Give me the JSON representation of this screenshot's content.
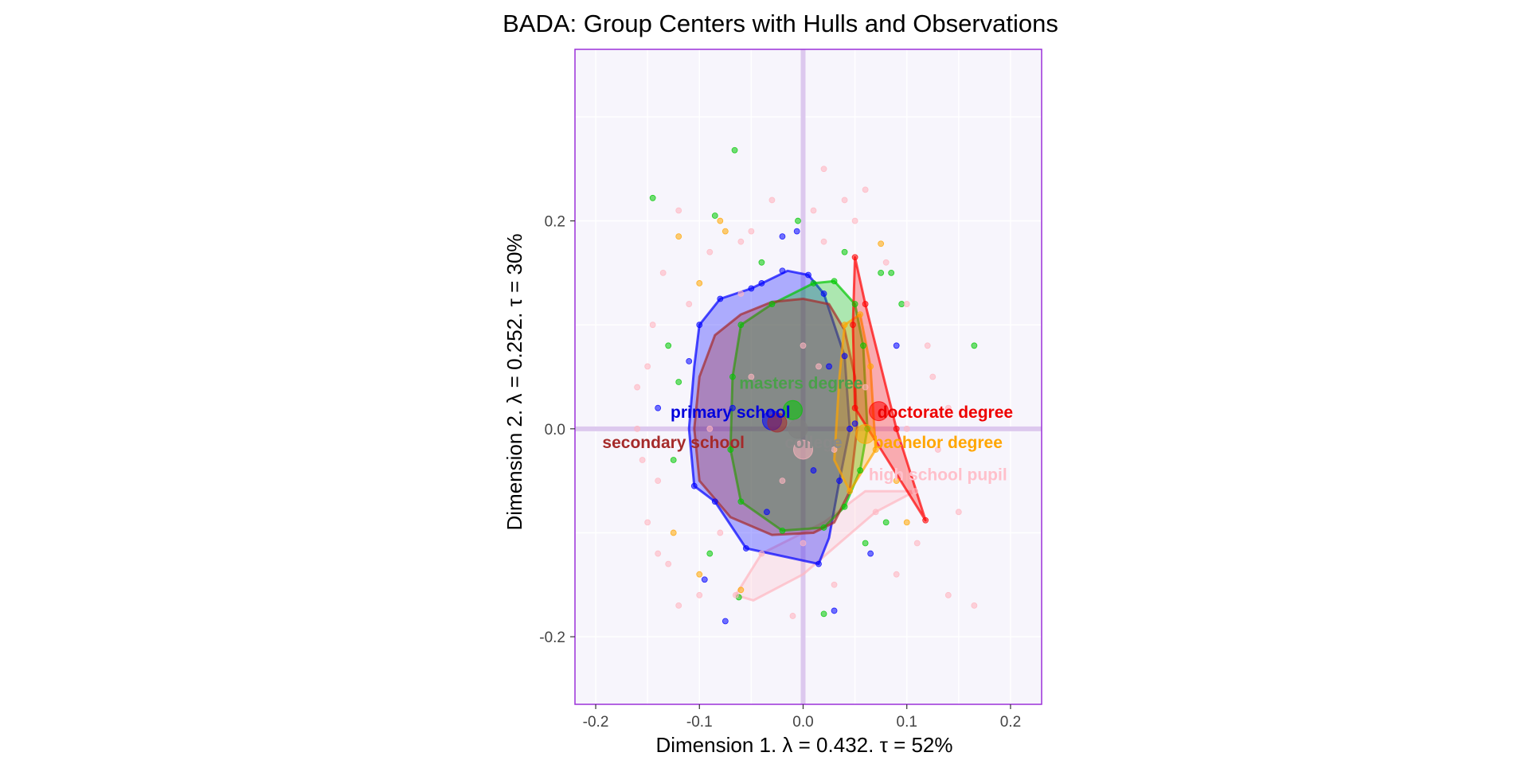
{
  "chart_data": {
    "type": "scatter",
    "title": "BADA: Group Centers with Hulls and Observations",
    "xlabel": "Dimension 1.   λ = 0.432.  τ = 52%",
    "ylabel": "Dimension 2.   λ = 0.252.  τ = 30%",
    "xlim": [
      -0.22,
      0.23
    ],
    "ylim": [
      -0.265,
      0.365
    ],
    "x_ticks": [
      -0.2,
      -0.1,
      0.0,
      0.1,
      0.2
    ],
    "y_ticks": [
      -0.2,
      0.0,
      0.2
    ],
    "x_tick_labels": [
      "-0.2",
      "-0.1",
      "0.0",
      "0.1",
      "0.2"
    ],
    "y_tick_labels": [
      "-0.2",
      "0.0",
      "0.2"
    ],
    "grid": true,
    "panel_background": "#f7f5fc",
    "panel_border_color": "#9b30d9",
    "origin_line_color": "#dcc8ee",
    "groups": [
      {
        "name": "primary school",
        "color": "#0000ff",
        "center": [
          -0.03,
          0.008
        ],
        "label_pos": [
          -0.07,
          0.016
        ],
        "hull": [
          [
            -0.08,
            0.125
          ],
          [
            -0.05,
            0.135
          ],
          [
            -0.015,
            0.152
          ],
          [
            0.005,
            0.148
          ],
          [
            0.02,
            0.13
          ],
          [
            0.04,
            0.07
          ],
          [
            0.045,
            0.0
          ],
          [
            0.035,
            -0.05
          ],
          [
            0.025,
            -0.105
          ],
          [
            0.015,
            -0.13
          ],
          [
            -0.055,
            -0.115
          ],
          [
            -0.085,
            -0.07
          ],
          [
            -0.105,
            -0.055
          ],
          [
            -0.11,
            0.0
          ],
          [
            -0.105,
            0.06
          ],
          [
            -0.1,
            0.1
          ]
        ]
      },
      {
        "name": "masters degree",
        "color": "#00c800",
        "center": [
          -0.01,
          0.018
        ],
        "label_pos": [
          -0.002,
          0.044
        ],
        "hull": [
          [
            -0.06,
            0.1
          ],
          [
            -0.03,
            0.12
          ],
          [
            0.01,
            0.14
          ],
          [
            0.03,
            0.142
          ],
          [
            0.05,
            0.12
          ],
          [
            0.058,
            0.08
          ],
          [
            0.062,
            0.0
          ],
          [
            0.055,
            -0.04
          ],
          [
            0.04,
            -0.075
          ],
          [
            0.02,
            -0.095
          ],
          [
            -0.02,
            -0.098
          ],
          [
            -0.06,
            -0.07
          ],
          [
            -0.07,
            -0.02
          ],
          [
            -0.068,
            0.05
          ]
        ]
      },
      {
        "name": "doctorate degree",
        "color": "#ff0000",
        "center": [
          0.073,
          0.017
        ],
        "label_pos": [
          0.137,
          0.016
        ],
        "hull": [
          [
            0.05,
            0.165
          ],
          [
            0.06,
            0.12
          ],
          [
            0.09,
            0.0
          ],
          [
            0.118,
            -0.088
          ],
          [
            0.05,
            0.02
          ],
          [
            0.048,
            0.1
          ]
        ]
      },
      {
        "name": "secondary school",
        "color": "#a52a2a",
        "center": [
          -0.025,
          0.006
        ],
        "label_pos": [
          -0.125,
          -0.013
        ],
        "hull": [
          [
            -0.06,
            0.11
          ],
          [
            -0.03,
            0.122
          ],
          [
            0.0,
            0.125
          ],
          [
            0.025,
            0.12
          ],
          [
            0.04,
            0.095
          ],
          [
            0.05,
            0.05
          ],
          [
            0.052,
            0.0
          ],
          [
            0.045,
            -0.06
          ],
          [
            0.03,
            -0.09
          ],
          [
            0.01,
            -0.1
          ],
          [
            -0.03,
            -0.102
          ],
          [
            -0.07,
            -0.085
          ],
          [
            -0.1,
            -0.05
          ],
          [
            -0.105,
            0.0
          ],
          [
            -0.1,
            0.05
          ],
          [
            -0.085,
            0.09
          ]
        ]
      },
      {
        "name": "college",
        "color": "#808080",
        "center": [
          -0.005,
          0.0
        ],
        "label_pos": [
          0.01,
          -0.013
        ],
        "hull": []
      },
      {
        "name": "bachelor degree",
        "color": "#ffa500",
        "center": [
          0.06,
          -0.005
        ],
        "label_pos": [
          0.13,
          -0.013
        ],
        "hull": [
          [
            0.04,
            0.1
          ],
          [
            0.055,
            0.11
          ],
          [
            0.065,
            0.06
          ],
          [
            0.07,
            -0.02
          ],
          [
            0.045,
            -0.06
          ],
          [
            0.03,
            -0.03
          ],
          [
            0.035,
            0.05
          ]
        ]
      },
      {
        "name": "high school pupil",
        "color": "#ffb6c1",
        "center": [
          0.0,
          -0.02
        ],
        "label_pos": [
          0.13,
          -0.044
        ],
        "hull": [
          [
            -0.04,
            -0.12
          ],
          [
            -0.065,
            -0.16
          ],
          [
            -0.048,
            -0.165
          ],
          [
            0.0,
            -0.14
          ],
          [
            0.07,
            -0.08
          ],
          [
            0.108,
            -0.06
          ],
          [
            0.06,
            -0.06
          ],
          [
            0.02,
            -0.09
          ]
        ]
      }
    ],
    "points": [
      {
        "g": 0,
        "x": -0.006,
        "y": 0.19
      },
      {
        "g": 0,
        "x": -0.02,
        "y": 0.185
      },
      {
        "g": 0,
        "x": 0.05,
        "y": 0.005
      },
      {
        "g": 0,
        "x": 0.03,
        "y": -0.175
      },
      {
        "g": 0,
        "x": -0.075,
        "y": -0.185
      },
      {
        "g": 0,
        "x": -0.095,
        "y": -0.145
      },
      {
        "g": 0,
        "x": -0.04,
        "y": 0.14
      },
      {
        "g": 0,
        "x": 0.065,
        "y": -0.12
      },
      {
        "g": 0,
        "x": -0.11,
        "y": 0.065
      },
      {
        "g": 0,
        "x": -0.02,
        "y": 0.152
      },
      {
        "g": 0,
        "x": 0.005,
        "y": 0.148
      },
      {
        "g": 0,
        "x": -0.08,
        "y": 0.125
      },
      {
        "g": 0,
        "x": 0.035,
        "y": -0.05
      },
      {
        "g": 0,
        "x": -0.055,
        "y": -0.115
      },
      {
        "g": 0,
        "x": 0.015,
        "y": -0.13
      },
      {
        "g": 0,
        "x": -0.105,
        "y": -0.055
      },
      {
        "g": 0,
        "x": -0.05,
        "y": 0.135
      },
      {
        "g": 0,
        "x": 0.02,
        "y": 0.13
      },
      {
        "g": 0,
        "x": 0.04,
        "y": 0.07
      },
      {
        "g": 0,
        "x": -0.085,
        "y": -0.07
      },
      {
        "g": 0,
        "x": 0.045,
        "y": 0.0
      },
      {
        "g": 0,
        "x": -0.1,
        "y": 0.1
      },
      {
        "g": 0,
        "x": -0.068,
        "y": 0.02
      },
      {
        "g": 0,
        "x": 0.01,
        "y": -0.04
      },
      {
        "g": 0,
        "x": -0.035,
        "y": -0.08
      },
      {
        "g": 0,
        "x": 0.025,
        "y": 0.06
      },
      {
        "g": 0,
        "x": -0.14,
        "y": 0.02
      },
      {
        "g": 0,
        "x": 0.09,
        "y": 0.08
      },
      {
        "g": 1,
        "x": -0.066,
        "y": 0.268
      },
      {
        "g": 1,
        "x": -0.145,
        "y": 0.222
      },
      {
        "g": 1,
        "x": 0.165,
        "y": 0.08
      },
      {
        "g": 1,
        "x": -0.085,
        "y": 0.205
      },
      {
        "g": 1,
        "x": 0.075,
        "y": 0.15
      },
      {
        "g": 1,
        "x": 0.085,
        "y": 0.15
      },
      {
        "g": 1,
        "x": 0.02,
        "y": -0.178
      },
      {
        "g": 1,
        "x": -0.062,
        "y": -0.162
      },
      {
        "g": 1,
        "x": 0.03,
        "y": 0.142
      },
      {
        "g": 1,
        "x": 0.058,
        "y": 0.08
      },
      {
        "g": 1,
        "x": 0.062,
        "y": 0.0
      },
      {
        "g": 1,
        "x": 0.055,
        "y": -0.04
      },
      {
        "g": 1,
        "x": 0.02,
        "y": -0.095
      },
      {
        "g": 1,
        "x": -0.02,
        "y": -0.098
      },
      {
        "g": 1,
        "x": -0.06,
        "y": -0.07
      },
      {
        "g": 1,
        "x": -0.07,
        "y": -0.02
      },
      {
        "g": 1,
        "x": -0.068,
        "y": 0.05
      },
      {
        "g": 1,
        "x": -0.06,
        "y": 0.1
      },
      {
        "g": 1,
        "x": -0.03,
        "y": 0.12
      },
      {
        "g": 1,
        "x": 0.01,
        "y": 0.14
      },
      {
        "g": 1,
        "x": 0.05,
        "y": 0.12
      },
      {
        "g": 1,
        "x": 0.04,
        "y": -0.075
      },
      {
        "g": 1,
        "x": -0.12,
        "y": 0.045
      },
      {
        "g": 1,
        "x": -0.125,
        "y": -0.03
      },
      {
        "g": 1,
        "x": 0.08,
        "y": -0.09
      },
      {
        "g": 1,
        "x": -0.09,
        "y": -0.12
      },
      {
        "g": 1,
        "x": 0.06,
        "y": -0.11
      },
      {
        "g": 1,
        "x": -0.005,
        "y": 0.2
      },
      {
        "g": 1,
        "x": 0.04,
        "y": 0.17
      },
      {
        "g": 1,
        "x": -0.13,
        "y": 0.08
      },
      {
        "g": 1,
        "x": 0.095,
        "y": 0.12
      },
      {
        "g": 1,
        "x": -0.04,
        "y": 0.16
      },
      {
        "g": 2,
        "x": 0.05,
        "y": 0.165
      },
      {
        "g": 2,
        "x": 0.06,
        "y": 0.12
      },
      {
        "g": 2,
        "x": 0.09,
        "y": 0.0
      },
      {
        "g": 2,
        "x": 0.118,
        "y": -0.088
      },
      {
        "g": 2,
        "x": 0.048,
        "y": 0.1
      },
      {
        "g": 2,
        "x": 0.05,
        "y": 0.02
      },
      {
        "g": 5,
        "x": -0.08,
        "y": 0.2
      },
      {
        "g": 5,
        "x": -0.12,
        "y": 0.185
      },
      {
        "g": 5,
        "x": 0.075,
        "y": 0.178
      },
      {
        "g": 5,
        "x": -0.075,
        "y": 0.19
      },
      {
        "g": 5,
        "x": -0.1,
        "y": 0.14
      },
      {
        "g": 5,
        "x": 0.04,
        "y": 0.1
      },
      {
        "g": 5,
        "x": 0.055,
        "y": 0.11
      },
      {
        "g": 5,
        "x": 0.065,
        "y": 0.06
      },
      {
        "g": 5,
        "x": 0.07,
        "y": -0.02
      },
      {
        "g": 5,
        "x": 0.045,
        "y": -0.06
      },
      {
        "g": 5,
        "x": -0.06,
        "y": -0.155
      },
      {
        "g": 5,
        "x": 0.09,
        "y": -0.05
      },
      {
        "g": 5,
        "x": -0.1,
        "y": -0.14
      },
      {
        "g": 5,
        "x": 0.1,
        "y": -0.09
      },
      {
        "g": 5,
        "x": -0.125,
        "y": -0.1
      },
      {
        "g": 6,
        "x": -0.15,
        "y": 0.06
      },
      {
        "g": 6,
        "x": -0.145,
        "y": 0.1
      },
      {
        "g": 6,
        "x": -0.16,
        "y": 0.04
      },
      {
        "g": 6,
        "x": -0.135,
        "y": 0.15
      },
      {
        "g": 6,
        "x": -0.12,
        "y": 0.21
      },
      {
        "g": 6,
        "x": -0.06,
        "y": 0.18
      },
      {
        "g": 6,
        "x": 0.02,
        "y": 0.25
      },
      {
        "g": 6,
        "x": 0.04,
        "y": 0.22
      },
      {
        "g": 6,
        "x": 0.01,
        "y": 0.21
      },
      {
        "g": 6,
        "x": -0.14,
        "y": -0.05
      },
      {
        "g": 6,
        "x": -0.15,
        "y": -0.09
      },
      {
        "g": 6,
        "x": -0.13,
        "y": -0.13
      },
      {
        "g": 6,
        "x": -0.12,
        "y": -0.17
      },
      {
        "g": 6,
        "x": -0.01,
        "y": -0.18
      },
      {
        "g": 6,
        "x": 0.14,
        "y": -0.16
      },
      {
        "g": 6,
        "x": 0.165,
        "y": -0.17
      },
      {
        "g": 6,
        "x": 0.13,
        "y": -0.02
      },
      {
        "g": 6,
        "x": 0.14,
        "y": 0.02
      },
      {
        "g": 6,
        "x": 0.12,
        "y": 0.08
      },
      {
        "g": 6,
        "x": 0.15,
        "y": -0.08
      },
      {
        "g": 6,
        "x": 0.1,
        "y": 0.12
      },
      {
        "g": 6,
        "x": -0.04,
        "y": -0.12
      },
      {
        "g": 6,
        "x": -0.065,
        "y": -0.16
      },
      {
        "g": 6,
        "x": 0.07,
        "y": -0.08
      },
      {
        "g": 6,
        "x": 0.108,
        "y": -0.06
      },
      {
        "g": 6,
        "x": -0.09,
        "y": 0.0
      },
      {
        "g": 6,
        "x": -0.05,
        "y": 0.05
      },
      {
        "g": 6,
        "x": 0.0,
        "y": 0.08
      },
      {
        "g": 6,
        "x": 0.03,
        "y": -0.02
      },
      {
        "g": 6,
        "x": -0.02,
        "y": -0.05
      },
      {
        "g": 6,
        "x": 0.06,
        "y": 0.04
      },
      {
        "g": 6,
        "x": -0.11,
        "y": 0.12
      },
      {
        "g": 6,
        "x": 0.08,
        "y": 0.16
      },
      {
        "g": 6,
        "x": -0.16,
        "y": 0.0
      },
      {
        "g": 6,
        "x": 0.11,
        "y": -0.11
      },
      {
        "g": 6,
        "x": -0.08,
        "y": -0.1
      },
      {
        "g": 6,
        "x": 0.0,
        "y": -0.11
      },
      {
        "g": 6,
        "x": 0.02,
        "y": 0.18
      },
      {
        "g": 6,
        "x": -0.03,
        "y": 0.22
      },
      {
        "g": 6,
        "x": 0.05,
        "y": 0.2
      },
      {
        "g": 6,
        "x": 0.125,
        "y": 0.05
      },
      {
        "g": 6,
        "x": -0.155,
        "y": -0.03
      },
      {
        "g": 6,
        "x": -0.14,
        "y": -0.12
      },
      {
        "g": 6,
        "x": 0.09,
        "y": -0.14
      },
      {
        "g": 6,
        "x": -0.1,
        "y": -0.16
      },
      {
        "g": 6,
        "x": 0.03,
        "y": -0.15
      },
      {
        "g": 6,
        "x": -0.05,
        "y": 0.19
      },
      {
        "g": 6,
        "x": 0.06,
        "y": 0.23
      },
      {
        "g": 6,
        "x": -0.09,
        "y": 0.17
      },
      {
        "g": 6,
        "x": 0.1,
        "y": 0.0
      },
      {
        "g": 6,
        "x": -0.06,
        "y": 0.13
      },
      {
        "g": 6,
        "x": 0.015,
        "y": 0.06
      }
    ]
  }
}
